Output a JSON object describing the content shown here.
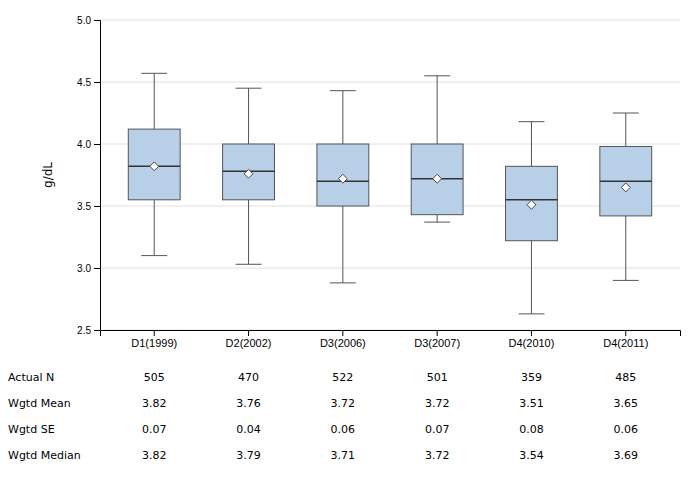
{
  "chart_data": {
    "type": "box",
    "ylabel": "g/dL",
    "categories": [
      "D1(1999)",
      "D2(2002)",
      "D3(2006)",
      "D3(2007)",
      "D4(2010)",
      "D4(2011)"
    ],
    "whisker_low": [
      3.1,
      3.03,
      2.88,
      3.37,
      2.63,
      2.9
    ],
    "q1": [
      3.55,
      3.55,
      3.5,
      3.43,
      3.22,
      3.42
    ],
    "median": [
      3.82,
      3.78,
      3.7,
      3.72,
      3.55,
      3.7
    ],
    "q3": [
      4.12,
      4.0,
      4.0,
      4.0,
      3.82,
      3.98
    ],
    "whisker_high": [
      4.57,
      4.45,
      4.43,
      4.55,
      4.18,
      4.25
    ],
    "mean": [
      3.82,
      3.76,
      3.72,
      3.72,
      3.51,
      3.65
    ],
    "color": "#b8cfe8",
    "ylim": [
      2.5,
      5.0
    ],
    "yticks": [
      2.5,
      {
        "value": 3,
        "label": "3.0"
      },
      3.5,
      {
        "value": 4,
        "label": "4.0"
      },
      4.5,
      {
        "value": 5,
        "label": "5.0"
      }
    ],
    "grid": true,
    "table": {
      "rows": [
        {
          "label": "Actual N",
          "values": [
            "505",
            "470",
            "522",
            "501",
            "359",
            "485"
          ]
        },
        {
          "label": "Wgtd Mean",
          "values": [
            "3.82",
            "3.76",
            "3.72",
            "3.72",
            "3.51",
            "3.65"
          ]
        },
        {
          "label": "Wgtd SE",
          "values": [
            "0.07",
            "0.04",
            "0.06",
            "0.07",
            "0.08",
            "0.06"
          ]
        },
        {
          "label": "Wgtd Median",
          "values": [
            "3.82",
            "3.79",
            "3.71",
            "3.72",
            "3.54",
            "3.69"
          ]
        }
      ]
    }
  }
}
